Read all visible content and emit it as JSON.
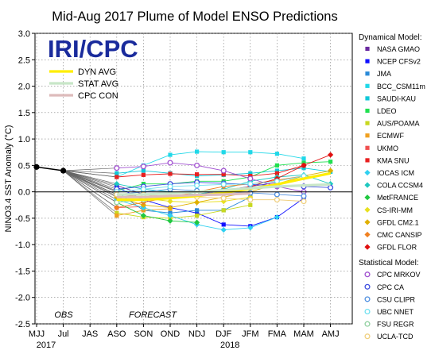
{
  "chart_data": {
    "type": "line",
    "title": "Mid-Aug 2017 Plume of Model ENSO Predictions",
    "ylabel": "NINO3.4 SST Anomaly (°C)",
    "ylim": [
      -2.5,
      3.0
    ],
    "yticks": [
      3.0,
      2.5,
      2.0,
      1.5,
      1.0,
      0.5,
      0.0,
      -0.5,
      -1.0,
      -1.5,
      -2.0,
      -2.5
    ],
    "categories": [
      "MJJ",
      "Jul",
      "JAS",
      "ASO",
      "SON",
      "OND",
      "NDJ",
      "DJF",
      "JFM",
      "FMA",
      "MAM",
      "AMJ"
    ],
    "year_labels": [
      "2017",
      "2018"
    ],
    "period_labels": {
      "obs": "OBS",
      "forecast": "FORECAST"
    },
    "logo": "IRI/CPC",
    "observed": {
      "x": [
        "MJJ",
        "Jul"
      ],
      "values": [
        0.47,
        0.4
      ]
    },
    "averages": [
      {
        "name": "DYN AVG",
        "color": "#ffee00",
        "values": [
          null,
          0.4,
          null,
          -0.15,
          -0.15,
          -0.12,
          -0.08,
          -0.02,
          0.06,
          0.14,
          0.25,
          0.35
        ]
      },
      {
        "name": "STAT AVG",
        "color": "#c8e6c8",
        "values": [
          null,
          0.4,
          null,
          -0.05,
          -0.05,
          -0.03,
          0.0,
          0.03,
          0.07,
          0.1,
          0.12,
          0.14
        ]
      },
      {
        "name": "CPC CON",
        "color": "#ddbbbb",
        "values": [
          null,
          0.4,
          null,
          -0.1,
          -0.1,
          -0.08,
          -0.06,
          -0.05,
          -0.03,
          null,
          null,
          null
        ]
      }
    ],
    "groups": [
      {
        "title": "Dynamical Model:",
        "series": [
          {
            "name": "NASA GMAO",
            "color": "#6a2aa0",
            "marker": "square",
            "values": [
              null,
              0.4,
              null,
              0.12,
              -0.05,
              -0.1,
              -0.05,
              0.03,
              0.1,
              0.18,
              null,
              null
            ]
          },
          {
            "name": "NCEP CFSv2",
            "color": "#1010ff",
            "marker": "square",
            "values": [
              null,
              0.4,
              null,
              0.09,
              -0.15,
              -0.3,
              -0.4,
              -0.62,
              -0.65,
              -0.48,
              -0.12,
              null
            ]
          },
          {
            "name": "JMA",
            "color": "#2a8ad8",
            "marker": "square",
            "values": [
              null,
              0.4,
              null,
              0.0,
              -0.35,
              -0.4,
              -0.35,
              -0.35,
              -0.1,
              null,
              null,
              null
            ]
          },
          {
            "name": "BCC_CSM11m",
            "color": "#20d8e8",
            "marker": "square",
            "values": [
              null,
              0.4,
              null,
              0.28,
              0.5,
              0.7,
              0.76,
              0.75,
              0.75,
              0.72,
              0.63,
              null
            ]
          },
          {
            "name": "SAUDI-KAU",
            "color": "#10c8d8",
            "marker": "square",
            "values": [
              null,
              0.4,
              null,
              0.35,
              0.4,
              0.35,
              0.3,
              0.32,
              0.35,
              0.4,
              0.45,
              0.38
            ]
          },
          {
            "name": "LDEO",
            "color": "#20e050",
            "marker": "square",
            "values": [
              null,
              0.4,
              null,
              0.02,
              0.15,
              0.15,
              0.2,
              0.2,
              0.28,
              0.5,
              0.55,
              0.57
            ]
          },
          {
            "name": "AUS/POAMA",
            "color": "#c8d820",
            "marker": "square",
            "values": [
              null,
              0.4,
              null,
              -0.4,
              -0.48,
              -0.5,
              -0.45,
              -0.35,
              -0.25,
              null,
              null,
              null
            ]
          },
          {
            "name": "ECMWF",
            "color": "#f0a020",
            "marker": "square",
            "values": [
              null,
              0.4,
              null,
              -0.45,
              -0.35,
              -0.32,
              null,
              null,
              null,
              null,
              null,
              null
            ]
          },
          {
            "name": "UKMO",
            "color": "#f05050",
            "marker": "square",
            "values": [
              null,
              0.4,
              null,
              -0.3,
              -0.28,
              null,
              null,
              null,
              null,
              null,
              null,
              null
            ]
          },
          {
            "name": "KMA SNU",
            "color": "#e82020",
            "marker": "square",
            "values": [
              null,
              0.4,
              null,
              0.28,
              0.32,
              0.34,
              0.33,
              0.33,
              0.3,
              0.35,
              0.5,
              null
            ]
          },
          {
            "name": "IOCAS ICM",
            "color": "#30d0f0",
            "marker": "diamond",
            "values": [
              null,
              0.4,
              null,
              -0.15,
              -0.3,
              -0.45,
              -0.62,
              -0.72,
              -0.68,
              -0.48,
              null,
              null
            ]
          },
          {
            "name": "COLA CCSM4",
            "color": "#20c8c0",
            "marker": "diamond",
            "values": [
              null,
              0.4,
              null,
              0.15,
              0.05,
              0.0,
              -0.05,
              0.05,
              0.2,
              0.28,
              0.32,
              0.15
            ]
          },
          {
            "name": "MetFRANCE",
            "color": "#20c840",
            "marker": "diamond",
            "values": [
              null,
              0.4,
              null,
              -0.2,
              -0.45,
              -0.55,
              -0.58,
              null,
              null,
              null,
              null,
              null
            ]
          },
          {
            "name": "CS-IRI-MM",
            "color": "#e8e020",
            "marker": "diamond",
            "values": [
              null,
              0.4,
              null,
              -0.08,
              -0.12,
              -0.18,
              -0.2,
              -0.18,
              -0.1,
              null,
              null,
              null
            ]
          },
          {
            "name": "GFDL CM2.1",
            "color": "#e0b000",
            "marker": "diamond",
            "values": [
              null,
              0.4,
              null,
              -0.1,
              -0.25,
              -0.3,
              -0.2,
              -0.1,
              0.0,
              0.15,
              0.3,
              0.4
            ]
          },
          {
            "name": "CMC CANSIP",
            "color": "#f08020",
            "marker": "diamond",
            "values": [
              null,
              0.4,
              null,
              -0.3,
              -0.2,
              -0.1,
              0.0,
              0.1,
              0.15,
              0.22,
              0.3,
              null
            ]
          },
          {
            "name": "GFDL FLOR",
            "color": "#e01010",
            "marker": "diamond",
            "values": [
              null,
              0.4,
              null,
              -0.05,
              -0.1,
              -0.1,
              -0.05,
              0.0,
              0.1,
              0.25,
              0.5,
              0.7
            ]
          }
        ]
      },
      {
        "title": "Statistical Model:",
        "series": [
          {
            "name": "CPC MRKOV",
            "color": "#a050d0",
            "marker": "circle",
            "values": [
              null,
              0.4,
              null,
              0.45,
              0.48,
              0.55,
              0.5,
              0.4,
              0.25,
              0.1,
              0.0,
              null
            ]
          },
          {
            "name": "CPC CA",
            "color": "#4050e0",
            "marker": "circle",
            "values": [
              null,
              0.4,
              null,
              0.05,
              0.1,
              0.15,
              0.18,
              0.16,
              0.14,
              0.12,
              0.1,
              0.08
            ]
          },
          {
            "name": "CSU CLIPR",
            "color": "#5090e0",
            "marker": "circle",
            "values": [
              null,
              0.4,
              null,
              -0.05,
              0.0,
              0.05,
              0.02,
              0.0,
              -0.02,
              -0.05,
              -0.08,
              null
            ]
          },
          {
            "name": "UBC NNET",
            "color": "#70e0f0",
            "marker": "circle",
            "values": [
              null,
              0.4,
              null,
              0.0,
              0.05,
              0.1,
              0.12,
              0.14,
              0.15,
              0.2,
              0.3,
              null
            ]
          },
          {
            "name": "FSU REGR",
            "color": "#90d0a0",
            "marker": "circle",
            "values": [
              null,
              0.4,
              null,
              -0.2,
              -0.15,
              -0.1,
              -0.05,
              0.0,
              null,
              null,
              null,
              null
            ]
          },
          {
            "name": "UCLA-TCD",
            "color": "#f0d080",
            "marker": "circle",
            "values": [
              null,
              0.4,
              null,
              -0.05,
              -0.05,
              -0.1,
              -0.1,
              -0.12,
              -0.15,
              -0.15,
              -0.18,
              null
            ]
          }
        ]
      }
    ]
  }
}
